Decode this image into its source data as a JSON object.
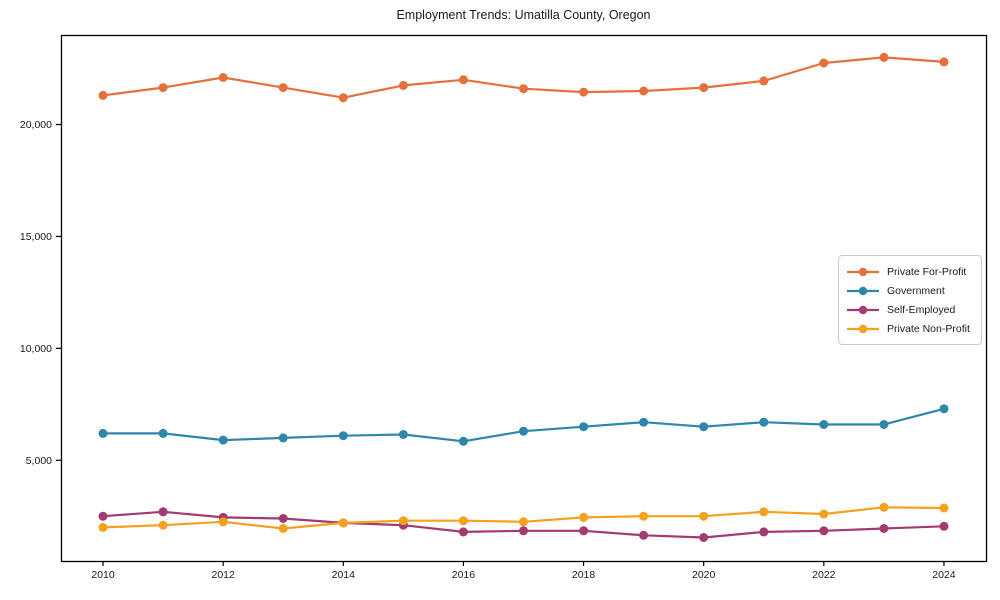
{
  "chart_data": {
    "type": "line",
    "title": "Employment Trends: Umatilla County, Oregon",
    "xlabel": "",
    "ylabel": "",
    "x": [
      2010,
      2011,
      2012,
      2013,
      2014,
      2015,
      2016,
      2017,
      2018,
      2019,
      2020,
      2021,
      2022,
      2023,
      2024
    ],
    "series": [
      {
        "name": "Private For-Profit",
        "color": "#E6703C",
        "values": [
          21300,
          21650,
          22100,
          21650,
          21200,
          21750,
          22000,
          21600,
          21450,
          21500,
          21650,
          21950,
          22750,
          23000,
          22800
        ]
      },
      {
        "name": "Government",
        "color": "#2E86AB",
        "values": [
          6200,
          6200,
          5900,
          6000,
          6100,
          6150,
          5850,
          6300,
          6500,
          6700,
          6500,
          6700,
          6600,
          6600,
          7300
        ]
      },
      {
        "name": "Self-Employed",
        "color": "#A23B72",
        "values": [
          2500,
          2700,
          2450,
          2400,
          2200,
          2100,
          1800,
          1850,
          1850,
          1650,
          1550,
          1800,
          1850,
          1950,
          2050
        ]
      },
      {
        "name": "Private Non-Profit",
        "color": "#F5A01E",
        "values": [
          2000,
          2100,
          2250,
          1950,
          2200,
          2300,
          2300,
          2250,
          2450,
          2500,
          2500,
          2700,
          2600,
          2900,
          2870
        ]
      }
    ],
    "xticks": [
      2010,
      2012,
      2014,
      2016,
      2018,
      2020,
      2022,
      2024
    ],
    "yticks": [
      5000,
      10000,
      15000,
      20000
    ],
    "ytick_labels": [
      "5,000",
      "10,000",
      "15,000",
      "20,000"
    ],
    "xlim": [
      2009.3,
      2024.7
    ],
    "ylim": [
      500,
      24000
    ],
    "grid": false,
    "legend_position": "center-right",
    "axis_color": "#000000",
    "background_color": "#ffffff"
  }
}
